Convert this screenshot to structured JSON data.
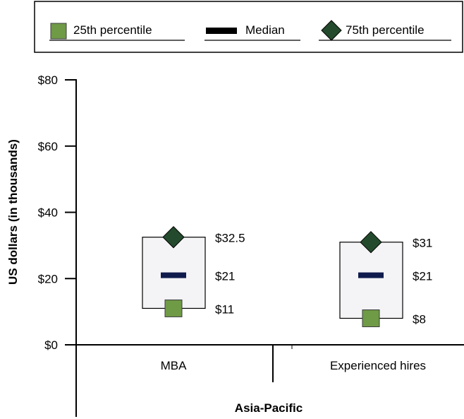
{
  "legend": {
    "p25_label": "25th percentile",
    "median_label": "Median",
    "p75_label": "75th percentile"
  },
  "colors": {
    "p25": "#6f9a46",
    "median": "#0f1b4c",
    "p75": "#234a2c",
    "box_fill": "#f4f4f6"
  },
  "chart_data": {
    "type": "box",
    "ylabel": "US dollars (in thousands)",
    "xlabel": "Asia-Pacific",
    "ylim": [
      0,
      80
    ],
    "yticks": [
      {
        "value": 0,
        "label": "$0"
      },
      {
        "value": 20,
        "label": "$20"
      },
      {
        "value": 40,
        "label": "$40"
      },
      {
        "value": 60,
        "label": "$60"
      },
      {
        "value": 80,
        "label": "$80"
      }
    ],
    "categories": [
      "MBA",
      "Experienced hires"
    ],
    "series": [
      {
        "name": "25th percentile",
        "values": [
          11,
          8
        ],
        "labels": [
          "$11",
          "$8"
        ]
      },
      {
        "name": "Median",
        "values": [
          21,
          21
        ],
        "labels": [
          "$21",
          "$21"
        ]
      },
      {
        "name": "75th percentile",
        "values": [
          32.5,
          31
        ],
        "labels": [
          "$32.5",
          "$31"
        ]
      }
    ]
  }
}
